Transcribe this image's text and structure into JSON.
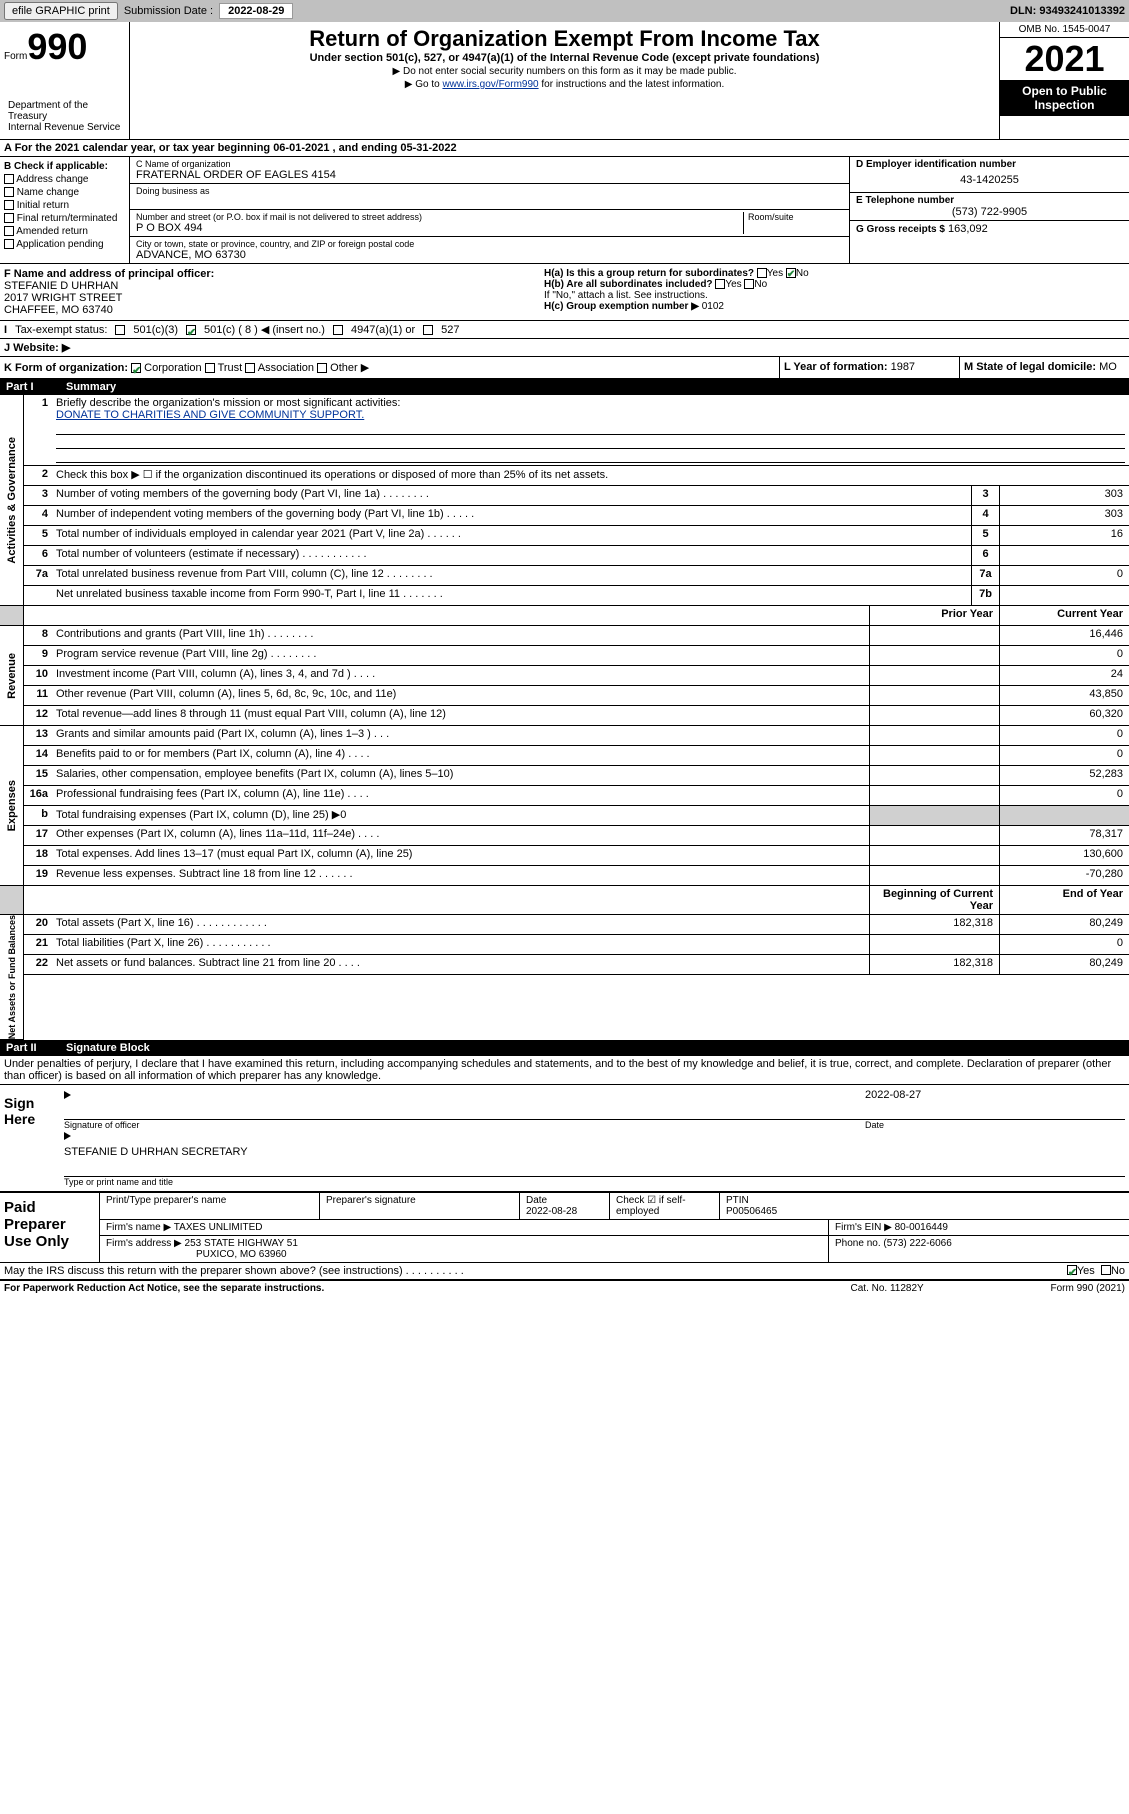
{
  "topbar": {
    "efile": "efile GRAPHIC print",
    "sub_label": "Submission Date :",
    "sub_date": "2022-08-29",
    "dln": "DLN: 93493241013392"
  },
  "header": {
    "form_sm": "Form",
    "form_lg": "990",
    "title": "Return of Organization Exempt From Income Tax",
    "sub": "Under section 501(c), 527, or 4947(a)(1) of the Internal Revenue Code (except private foundations)",
    "note1": "▶ Do not enter social security numbers on this form as it may be made public.",
    "note2_pre": "▶ Go to ",
    "note2_link": "www.irs.gov/Form990",
    "note2_post": " for instructions and the latest information.",
    "dept": "Department of the Treasury\nInternal Revenue Service",
    "omb": "OMB No. 1545-0047",
    "year": "2021",
    "inspect": "Open to Public Inspection"
  },
  "rowA": {
    "text": "A For the 2021 calendar year, or tax year beginning 06-01-2021   , and ending 05-31-2022"
  },
  "colB": {
    "hdr": "B Check if applicable:",
    "items": [
      "Address change",
      "Name change",
      "Initial return",
      "Final return/terminated",
      "Amended return",
      "Application pending"
    ]
  },
  "colC": {
    "name_lbl": "C Name of organization",
    "name": "FRATERNAL ORDER OF EAGLES 4154",
    "dba_lbl": "Doing business as",
    "dba": "",
    "addr_lbl": "Number and street (or P.O. box if mail is not delivered to street address)",
    "room_lbl": "Room/suite",
    "addr": "P O BOX 494",
    "city_lbl": "City or town, state or province, country, and ZIP or foreign postal code",
    "city": "ADVANCE, MO  63730"
  },
  "colD": {
    "ein_lbl": "D Employer identification number",
    "ein": "43-1420255",
    "tel_lbl": "E Telephone number",
    "tel": "(573) 722-9905",
    "g_lbl": "G Gross receipts $",
    "g_val": "163,092"
  },
  "rowF": {
    "lbl": "F Name and address of principal officer:",
    "name": "STEFANIE D UHRHAN",
    "addr1": "2017 WRIGHT STREET",
    "addr2": "CHAFFEE, MO  63740"
  },
  "rowH": {
    "ha": "H(a)  Is this a group return for subordinates?",
    "ha_no": "No",
    "hb": "H(b)  Are all subordinates included?",
    "hb_note": "If \"No,\" attach a list. See instructions.",
    "hc": "H(c)  Group exemption number ▶",
    "hc_val": "0102"
  },
  "rowI": {
    "lbl": "Tax-exempt status:",
    "opt1": "501(c)(3)",
    "opt2": "501(c) ( 8 ) ◀ (insert no.)",
    "opt3": "4947(a)(1) or",
    "opt4": "527"
  },
  "rowJ": {
    "lbl": "J   Website: ▶"
  },
  "rowK": {
    "lbl": "K Form of organization:",
    "opts": [
      "Corporation",
      "Trust",
      "Association",
      "Other ▶"
    ],
    "l_lbl": "L Year of formation:",
    "l_val": "1987",
    "m_lbl": "M State of legal domicile:",
    "m_val": "MO"
  },
  "part1": {
    "hdr_num": "Part I",
    "hdr_txt": "Summary",
    "q1": "Briefly describe the organization's mission or most significant activities:",
    "mission": "DONATE TO CHARITIES AND GIVE COMMUNITY SUPPORT.",
    "q2": "Check this box ▶ ☐  if the organization discontinued its operations or disposed of more than 25% of its net assets.",
    "vert1": "Activities & Governance",
    "vert2": "Revenue",
    "vert3": "Expenses",
    "vert4": "Net Assets or Fund Balances",
    "prior": "Prior Year",
    "current": "Current Year",
    "begin": "Beginning of Current Year",
    "end": "End of Year"
  },
  "lines_gov": [
    {
      "n": "3",
      "t": "Number of voting members of the governing body (Part VI, line 1a)  .  .  .  .  .  .  .  .",
      "bn": "3",
      "v": "303"
    },
    {
      "n": "4",
      "t": "Number of independent voting members of the governing body (Part VI, line 1b)  .  .  .  .  .",
      "bn": "4",
      "v": "303"
    },
    {
      "n": "5",
      "t": "Total number of individuals employed in calendar year 2021 (Part V, line 2a)  .  .  .  .  .  .",
      "bn": "5",
      "v": "16"
    },
    {
      "n": "6",
      "t": "Total number of volunteers (estimate if necessary)  .  .  .  .  .  .  .  .  .  .  .",
      "bn": "6",
      "v": ""
    },
    {
      "n": "7a",
      "t": "Total unrelated business revenue from Part VIII, column (C), line 12  .  .  .  .  .  .  .  .",
      "bn": "7a",
      "v": "0"
    },
    {
      "n": "",
      "t": "Net unrelated business taxable income from Form 990-T, Part I, line 11  .  .  .  .  .  .  .",
      "bn": "7b",
      "v": ""
    }
  ],
  "lines_rev": [
    {
      "n": "8",
      "t": "Contributions and grants (Part VIII, line 1h)  .  .  .  .  .  .  .  .",
      "p": "",
      "c": "16,446"
    },
    {
      "n": "9",
      "t": "Program service revenue (Part VIII, line 2g)  .  .  .  .  .  .  .  .",
      "p": "",
      "c": "0"
    },
    {
      "n": "10",
      "t": "Investment income (Part VIII, column (A), lines 3, 4, and 7d )  .  .  .  .",
      "p": "",
      "c": "24"
    },
    {
      "n": "11",
      "t": "Other revenue (Part VIII, column (A), lines 5, 6d, 8c, 9c, 10c, and 11e)",
      "p": "",
      "c": "43,850"
    },
    {
      "n": "12",
      "t": "Total revenue—add lines 8 through 11 (must equal Part VIII, column (A), line 12)",
      "p": "",
      "c": "60,320"
    }
  ],
  "lines_exp": [
    {
      "n": "13",
      "t": "Grants and similar amounts paid (Part IX, column (A), lines 1–3 )  .  .  .",
      "p": "",
      "c": "0"
    },
    {
      "n": "14",
      "t": "Benefits paid to or for members (Part IX, column (A), line 4)  .  .  .  .",
      "p": "",
      "c": "0"
    },
    {
      "n": "15",
      "t": "Salaries, other compensation, employee benefits (Part IX, column (A), lines 5–10)",
      "p": "",
      "c": "52,283"
    },
    {
      "n": "16a",
      "t": "Professional fundraising fees (Part IX, column (A), line 11e)  .  .  .  .",
      "p": "",
      "c": "0"
    },
    {
      "n": "b",
      "t": "Total fundraising expenses (Part IX, column (D), line 25) ▶0",
      "p": "shade",
      "c": "shade"
    },
    {
      "n": "17",
      "t": "Other expenses (Part IX, column (A), lines 11a–11d, 11f–24e)  .  .  .  .",
      "p": "",
      "c": "78,317"
    },
    {
      "n": "18",
      "t": "Total expenses. Add lines 13–17 (must equal Part IX, column (A), line 25)",
      "p": "",
      "c": "130,600"
    },
    {
      "n": "19",
      "t": "Revenue less expenses. Subtract line 18 from line 12  .  .  .  .  .  .",
      "p": "",
      "c": "-70,280"
    }
  ],
  "lines_net": [
    {
      "n": "20",
      "t": "Total assets (Part X, line 16)  .  .  .  .  .  .  .  .  .  .  .  .",
      "p": "182,318",
      "c": "80,249"
    },
    {
      "n": "21",
      "t": "Total liabilities (Part X, line 26)  .  .  .  .  .  .  .  .  .  .  .",
      "p": "",
      "c": "0"
    },
    {
      "n": "22",
      "t": "Net assets or fund balances. Subtract line 21 from line 20  .  .  .  .",
      "p": "182,318",
      "c": "80,249"
    }
  ],
  "part2": {
    "hdr_num": "Part II",
    "hdr_txt": "Signature Block",
    "decl": "Under penalties of perjury, I declare that I have examined this return, including accompanying schedules and statements, and to the best of my knowledge and belief, it is true, correct, and complete. Declaration of preparer (other than officer) is based on all information of which preparer has any knowledge.",
    "sign_here": "Sign Here",
    "sig_off": "Signature of officer",
    "sig_date": "2022-08-27",
    "date_lbl": "Date",
    "officer": "STEFANIE D UHRHAN  SECRETARY",
    "name_lbl": "Type or print name and title"
  },
  "prep": {
    "hdr": "Paid Preparer Use Only",
    "pt_name": "Print/Type preparer's name",
    "pt_sig": "Preparer's signature",
    "pt_date_lbl": "Date",
    "pt_date": "2022-08-28",
    "pt_check": "Check ☑ if self-employed",
    "ptin_lbl": "PTIN",
    "ptin": "P00506465",
    "firm_name_lbl": "Firm's name    ▶",
    "firm_name": "TAXES UNLIMITED",
    "firm_ein_lbl": "Firm's EIN ▶",
    "firm_ein": "80-0016449",
    "firm_addr_lbl": "Firm's address ▶",
    "firm_addr1": "253 STATE HIGHWAY 51",
    "firm_addr2": "PUXICO, MO  63960",
    "phone_lbl": "Phone no.",
    "phone": "(573) 222-6066"
  },
  "foot": {
    "discuss": "May the IRS discuss this return with the preparer shown above? (see instructions)  .  .  .  .  .  .  .  .  .  .",
    "yes": "Yes",
    "no": "No",
    "pra": "For Paperwork Reduction Act Notice, see the separate instructions.",
    "cat": "Cat. No. 11282Y",
    "form": "Form 990 (2021)"
  }
}
